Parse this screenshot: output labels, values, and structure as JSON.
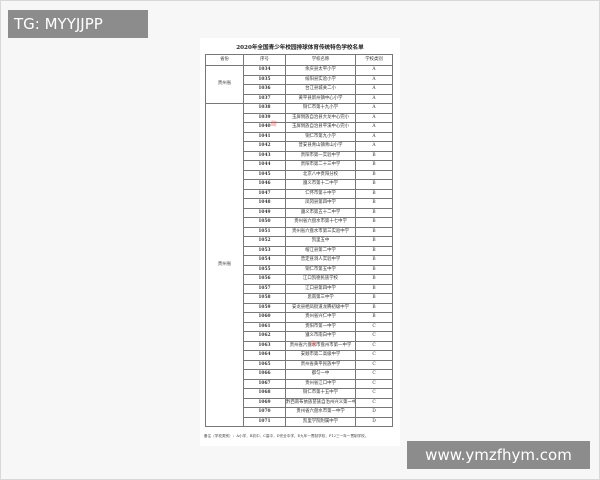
{
  "overlay": {
    "tag": "TG: MYYJJPP",
    "site": "www.ymzfhym.com"
  },
  "document": {
    "title": "2020年全国青少年校园排球体育传统特色学校名单",
    "headers": [
      "省份",
      "序号",
      "学校名称",
      "学校类别"
    ],
    "groups": [
      {
        "province": "贵州省",
        "rows": [
          [
            "1034",
            "余庆县太平小学",
            "A"
          ],
          [
            "1035",
            "绥阳县实验小学",
            "A"
          ],
          [
            "1036",
            "台江县城关二小",
            "A"
          ],
          [
            "1037",
            "黄平县新州镇中心小学",
            "A"
          ]
        ]
      },
      {
        "province": "贵州省",
        "rows": [
          [
            "1038",
            "铜仁市第十九小学",
            "A"
          ],
          [
            "1039",
            "玉屏侗族自治县大龙中心完小",
            "A"
          ],
          [
            "1040",
            "玉屏侗族自治县平溪中心完小",
            "A"
          ],
          [
            "1041",
            "铜仁市第九小学",
            "A"
          ],
          [
            "1042",
            "普安县青山镇青山小学",
            "A"
          ],
          [
            "1043",
            "贵阳市第一实验中学",
            "B"
          ],
          [
            "1044",
            "贵阳市第二十三中学",
            "B"
          ],
          [
            "1045",
            "北京八中贵阳分校",
            "B"
          ],
          [
            "1046",
            "遵义市第十二中学",
            "B"
          ],
          [
            "1047",
            "仁怀市第十中学",
            "B"
          ],
          [
            "1048",
            "凤冈县第四中学",
            "B"
          ],
          [
            "1049",
            "遵义市第五十二中学",
            "B"
          ],
          [
            "1050",
            "贵州省六盘水市第十七中学",
            "B"
          ],
          [
            "1051",
            "贵州省六盘水市第三实验中学",
            "B"
          ],
          [
            "1052",
            "凯里五中",
            "B"
          ],
          [
            "1053",
            "榕江县第二中学",
            "B"
          ],
          [
            "1054",
            "普定县洞人实验中学",
            "B"
          ],
          [
            "1055",
            "铜仁市第五中学",
            "B"
          ],
          [
            "1056",
            "江口凯德民族学校",
            "B"
          ],
          [
            "1057",
            "江口县第四中学",
            "B"
          ],
          [
            "1058",
            "思南第三中学",
            "B"
          ],
          [
            "1059",
            "安龙县栖凤街道龙腾初级中学",
            "B"
          ],
          [
            "1060",
            "贵州省兴仁中学",
            "B"
          ],
          [
            "1061",
            "贵阳市第一中学",
            "C"
          ],
          [
            "1062",
            "遵义市南白中学",
            "C"
          ],
          [
            "1063",
            "贵州省六盘水市盘州市第一中学",
            "C"
          ],
          [
            "1064",
            "安顺市第二高级中学",
            "C"
          ],
          [
            "1065",
            "贵州省黄平民族中学",
            "C"
          ],
          [
            "1066",
            "都匀一中",
            "C"
          ],
          [
            "1067",
            "贵州省江口中学",
            "C"
          ],
          [
            "1068",
            "铜仁市第十五中学",
            "C"
          ],
          [
            "1069",
            "黔西南布依族苗族自治州兴义第一中学",
            "C"
          ],
          [
            "1070",
            "贵州省六盘水市第一中学",
            "D"
          ],
          [
            "1071",
            "凯里学院附属中学",
            "D"
          ]
        ]
      }
    ],
    "note": "备注（学校类别）：A小学，B初中，C高中，D完全中学，E九年一贯制学校，F12三一年一贯制学校。"
  }
}
